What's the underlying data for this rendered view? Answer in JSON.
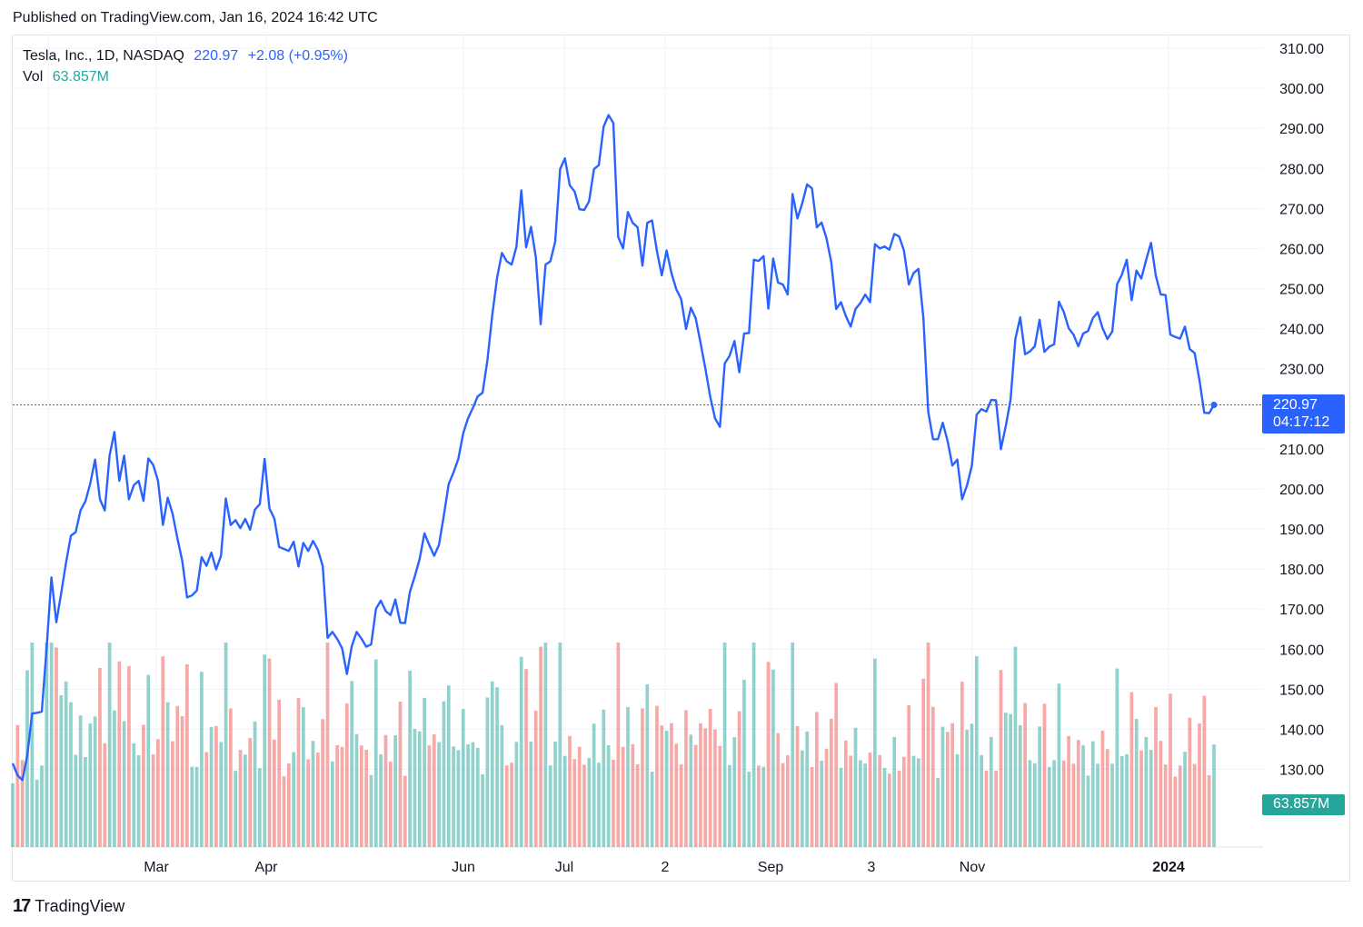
{
  "header": {
    "published": "Published on TradingView.com, Jan 16, 2024 16:42 UTC"
  },
  "legend": {
    "symbol": "Tesla, Inc., 1D, NASDAQ",
    "last": "220.97",
    "change": "+2.08 (+0.95%)",
    "vol_label": "Vol",
    "vol_value": "63.857M"
  },
  "tags": {
    "price": "220.97",
    "countdown": "04:17:12",
    "volume": "63.857M"
  },
  "brand": {
    "logo": "17",
    "name": "TradingView"
  },
  "colors": {
    "line": "#2962ff",
    "up_volume": "#26a69a",
    "down_volume": "#ef5350",
    "grid": "#f0f3fa"
  },
  "chart_data": {
    "type": "line",
    "ylim": [
      120,
      310
    ],
    "y_ticks": [
      "310.00",
      "300.00",
      "290.00",
      "280.00",
      "270.00",
      "260.00",
      "250.00",
      "240.00",
      "230.00",
      "220.00",
      "210.00",
      "200.00",
      "190.00",
      "180.00",
      "170.00",
      "160.00",
      "150.00",
      "140.00",
      "130.00"
    ],
    "x_ticks": [
      "Mar",
      "Apr",
      "Jun",
      "Jul",
      "2",
      "Sep",
      "3",
      "Nov",
      "2024"
    ],
    "last_price": 220.97,
    "price": [
      131.5,
      128.5,
      127.3,
      133.4,
      143.9,
      144.1,
      144.4,
      160.3,
      177.9,
      166.7,
      173.9,
      181.5,
      188.3,
      189.2,
      194.6,
      196.9,
      201.3,
      207.3,
      197.4,
      194.6,
      208.3,
      214.2,
      202.0,
      208.3,
      197.4,
      200.9,
      202.0,
      197.0,
      207.6,
      206.0,
      202.0,
      191.0,
      197.8,
      193.8,
      187.7,
      182.0,
      172.9,
      173.4,
      174.6,
      183.0,
      180.8,
      184.1,
      179.9,
      183.3,
      197.6,
      191.0,
      192.2,
      190.2,
      192.5,
      189.8,
      194.8,
      196.2,
      207.5,
      195.1,
      192.6,
      185.5,
      185.0,
      184.5,
      186.8,
      180.6,
      186.5,
      184.5,
      187.0,
      184.8,
      180.7,
      162.8,
      164.3,
      162.5,
      160.2,
      153.8,
      160.7,
      164.3,
      162.6,
      160.6,
      161.2,
      170.1,
      172.1,
      169.5,
      168.5,
      172.4,
      166.6,
      166.5,
      174.3,
      178.1,
      182.5,
      188.9,
      186.0,
      183.3,
      186.0,
      193.3,
      201.2,
      204.1,
      207.5,
      213.9,
      217.6,
      220.2,
      223.1,
      224.0,
      232.1,
      243.3,
      252.8,
      258.9,
      256.8,
      256.0,
      260.5,
      274.5,
      260.3,
      265.4,
      257.8,
      241.1,
      256.0,
      256.8,
      261.7,
      279.8,
      282.5,
      275.8,
      274.2,
      269.8,
      269.6,
      271.8,
      279.8,
      280.8,
      290.4,
      293.3,
      291.3,
      262.9,
      260.0,
      269.1,
      266.4,
      265.3,
      255.7,
      266.4,
      267.0,
      259.3,
      253.3,
      259.5,
      253.8,
      249.8,
      247.4,
      239.9,
      245.2,
      242.6,
      236.4,
      230.0,
      223.0,
      217.6,
      215.5,
      231.3,
      233.2,
      236.9,
      229.1,
      238.8,
      238.9,
      257.2,
      256.9,
      258.1,
      245.0,
      257.5,
      251.5,
      251.0,
      248.5,
      273.6,
      267.5,
      271.3,
      276.0,
      275.0,
      265.3,
      266.5,
      262.6,
      256.5,
      244.9,
      246.6,
      243.1,
      240.5,
      244.9,
      246.4,
      248.5,
      246.6,
      261.1,
      260.0,
      260.5,
      259.7,
      263.6,
      263.0,
      259.5,
      251.0,
      253.9,
      254.9,
      242.7,
      219.3,
      212.4,
      212.4,
      216.5,
      212.0,
      205.8,
      207.3,
      197.4,
      200.8,
      205.7,
      218.5,
      219.9,
      219.3,
      222.2,
      222.1,
      209.9,
      215.6,
      222.2,
      237.4,
      242.8,
      233.6,
      234.3,
      235.6,
      242.2,
      234.2,
      235.5,
      236.1,
      246.7,
      244.1,
      240.1,
      238.5,
      235.6,
      238.8,
      239.4,
      242.6,
      244.1,
      240.1,
      237.4,
      239.3,
      251.1,
      253.5,
      257.2,
      247.1,
      254.5,
      252.5,
      257.2,
      261.4,
      253.2,
      248.5,
      248.4,
      238.5,
      237.9,
      237.5,
      240.5,
      234.9,
      233.9,
      227.2,
      219.0,
      218.9,
      220.97
    ],
    "volume_series": [
      {
        "name": "Vol",
        "last": "63.857M"
      }
    ]
  }
}
